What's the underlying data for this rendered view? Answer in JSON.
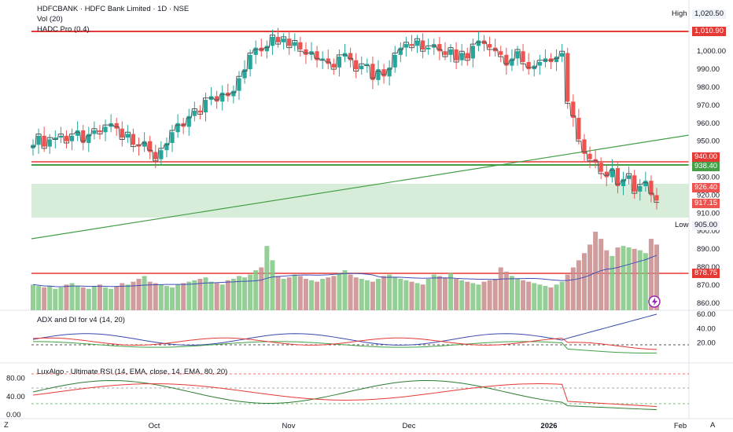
{
  "header": {
    "symbol_line": "HDFCBANK · HDFC Bank Limited · 1D · NSE",
    "vol_label": "Vol (20)",
    "hadc_label": "HADC Pro (0.4)",
    "adx_label": "ADX and DI for v4 (14, 20)",
    "rsi_label": "LuxAlgo - Ultimate RSI (14, EMA, close, 14, EMA, 80, 20)"
  },
  "price_tags": {
    "high_label": "High",
    "high_value": "1,020.50",
    "low_label": "Low",
    "low_value": "905.00",
    "t1010": "1,010.90",
    "t940": "940.00",
    "t938": "938.40",
    "t926": "926.40",
    "t917": "917.15",
    "t878": "878.75"
  },
  "bottom_bar": {
    "left_tool": "Z",
    "right_tool": "A"
  },
  "colors": {
    "up": "#26a69a",
    "down": "#ef5350",
    "red_line": "#e53935",
    "green_line": "#43a047",
    "zone": "#c8e6c9"
  },
  "chart_data": {
    "type": "candlestick",
    "price_axis": {
      "ylim": [
        856,
        1025
      ],
      "ticks": [
        "1,000.00",
        "990.00",
        "980.00",
        "970.00",
        "960.00",
        "950.00",
        "940.00",
        "930.00",
        "920.00",
        "910.00",
        "900.00",
        "890.00",
        "880.00",
        "870.00",
        "860.00"
      ]
    },
    "x_labels": [
      "Oct",
      "Nov",
      "Dec",
      "2026",
      "Feb"
    ],
    "levels": [
      1010.9,
      940.0,
      938.4,
      878.75
    ],
    "zone": [
      910,
      927
    ],
    "trendline": [
      [
        0,
        897
      ],
      [
        833,
        953
      ]
    ],
    "closes": [
      948,
      953,
      947,
      951,
      952,
      953,
      950,
      953,
      956,
      949,
      954,
      956,
      955,
      958,
      960,
      957,
      952,
      954,
      948,
      947,
      950,
      944,
      940,
      945,
      949,
      955,
      960,
      958,
      964,
      967,
      966,
      973,
      975,
      972,
      977,
      975,
      978,
      985,
      990,
      998,
      1002,
      1000,
      1003,
      1008,
      1005,
      1007,
      1003,
      1005,
      1001,
      998,
      1000,
      995,
      996,
      993,
      991,
      997,
      999,
      995,
      990,
      992,
      993,
      984,
      990,
      986,
      991,
      998,
      1002,
      1004,
      1003,
      1006,
      1001,
      1002,
      1004,
      1000,
      998,
      1001,
      995,
      999,
      996,
      1003,
      1006,
      1004,
      1002,
      1000,
      998,
      992,
      996,
      1000,
      994,
      990,
      992,
      994,
      996,
      994,
      997,
      999,
      972,
      963,
      951,
      943,
      940,
      938,
      933,
      930,
      935,
      925,
      929,
      931,
      922,
      925,
      928,
      920,
      917
    ],
    "volume": [
      18,
      17,
      16,
      17,
      15,
      16,
      18,
      19,
      17,
      16,
      15,
      17,
      18,
      16,
      15,
      17,
      19,
      18,
      20,
      22,
      24,
      20,
      19,
      18,
      17,
      16,
      18,
      19,
      20,
      21,
      22,
      23,
      20,
      19,
      18,
      21,
      22,
      24,
      23,
      25,
      28,
      30,
      45,
      35,
      24,
      22,
      23,
      25,
      24,
      22,
      21,
      20,
      22,
      23,
      24,
      26,
      28,
      25,
      23,
      22,
      21,
      20,
      22,
      24,
      25,
      23,
      22,
      21,
      20,
      19,
      18,
      22,
      25,
      24,
      23,
      26,
      22,
      21,
      20,
      19,
      18,
      20,
      21,
      22,
      30,
      27,
      24,
      22,
      21,
      20,
      19,
      18,
      17,
      16,
      18,
      20,
      25,
      30,
      35,
      40,
      46,
      55,
      50,
      42,
      38,
      44,
      45,
      44,
      43,
      42,
      40,
      50,
      46
    ],
    "adx": {
      "ylim": [
        0,
        60
      ],
      "ticks": [
        "60.00",
        "40.00",
        "20.00"
      ],
      "dashed_level": 20
    },
    "rsi": {
      "ylim": [
        0,
        100
      ],
      "ticks": [
        "80.00",
        "40.00",
        "0.00"
      ],
      "dashed_levels": [
        80,
        50,
        20
      ]
    }
  }
}
